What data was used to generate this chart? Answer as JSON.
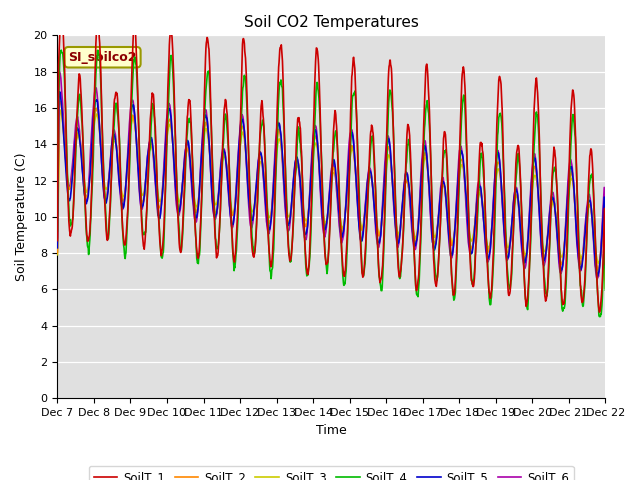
{
  "title": "Soil CO2 Temperatures",
  "xlabel": "Time",
  "ylabel": "Soil Temperature (C)",
  "annotation": "SI_soilco2",
  "ylim": [
    0,
    20
  ],
  "background_color": "#e0e0e0",
  "x_tick_labels": [
    "Dec 7",
    "Dec 8",
    "Dec 9",
    "Dec 10",
    "Dec 11",
    "Dec 12",
    "Dec 13",
    "Dec 14",
    "Dec 15",
    "Dec 16",
    "Dec 17",
    "Dec 18",
    "Dec 19",
    "Dec 20",
    "Dec 21",
    "Dec 22"
  ],
  "series_colors": {
    "SoilT_1": "#cc0000",
    "SoilT_2": "#ff8800",
    "SoilT_3": "#cccc00",
    "SoilT_4": "#00bb00",
    "SoilT_5": "#0000cc",
    "SoilT_6": "#aa00aa"
  },
  "series_linewidth": 1.2
}
